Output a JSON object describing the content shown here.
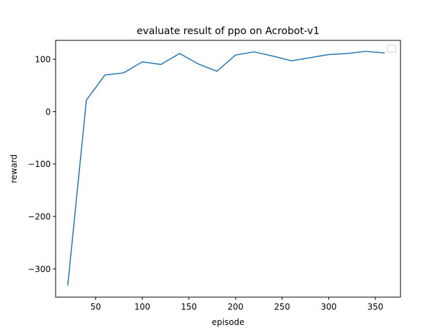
{
  "chart_data": {
    "type": "line",
    "title": "evaluate result of ppo on Acrobot-v1",
    "xlabel": "episode",
    "ylabel": "reward",
    "xlim": [
      7,
      377
    ],
    "ylim": [
      -354,
      136
    ],
    "xticks": [
      50,
      100,
      150,
      200,
      250,
      300,
      350
    ],
    "yticks": [
      -300,
      -200,
      -100,
      0,
      100
    ],
    "ytick_labels": [
      "−300",
      "−200",
      "−100",
      "0",
      "100"
    ],
    "grid": false,
    "legend": {
      "placement": "top-right",
      "entries": []
    },
    "series": [
      {
        "color": "#1f77b4",
        "x": [
          20,
          40,
          60,
          80,
          100,
          120,
          140,
          160,
          180,
          200,
          220,
          240,
          260,
          280,
          300,
          320,
          340,
          360
        ],
        "y": [
          -332,
          22,
          70,
          74,
          95,
          90,
          111,
          91,
          77,
          108,
          114,
          106,
          97,
          103,
          109,
          111,
          115,
          112
        ]
      }
    ]
  }
}
